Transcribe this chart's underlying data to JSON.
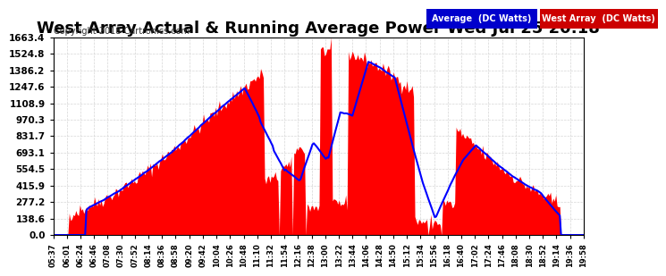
{
  "title": "West Array Actual & Running Average Power Wed Jul 25 20:18",
  "copyright": "Copyright 2018 Cartronics.com",
  "y_ticks": [
    0.0,
    138.6,
    277.2,
    415.9,
    554.5,
    693.1,
    831.7,
    970.3,
    1108.9,
    1247.6,
    1386.2,
    1524.8,
    1663.4
  ],
  "y_max": 1663.4,
  "y_min": 0.0,
  "x_labels": [
    "05:37",
    "06:01",
    "06:24",
    "06:46",
    "07:08",
    "07:30",
    "07:52",
    "08:14",
    "08:36",
    "08:58",
    "09:20",
    "09:42",
    "10:04",
    "10:26",
    "10:48",
    "11:10",
    "11:32",
    "11:54",
    "12:16",
    "12:38",
    "13:00",
    "13:22",
    "13:44",
    "14:06",
    "14:28",
    "14:50",
    "15:12",
    "15:34",
    "15:56",
    "16:18",
    "16:40",
    "17:02",
    "17:24",
    "17:46",
    "18:08",
    "18:30",
    "18:52",
    "19:14",
    "19:36",
    "19:58"
  ],
  "bg_color": "#ffffff",
  "grid_color": "#cccccc",
  "fill_color": "#ff0000",
  "line_color": "#0000ff",
  "title_fontsize": 13,
  "legend_avg_bg": "#0000cc",
  "legend_west_bg": "#cc0000",
  "legend_text_color": "#ffffff"
}
